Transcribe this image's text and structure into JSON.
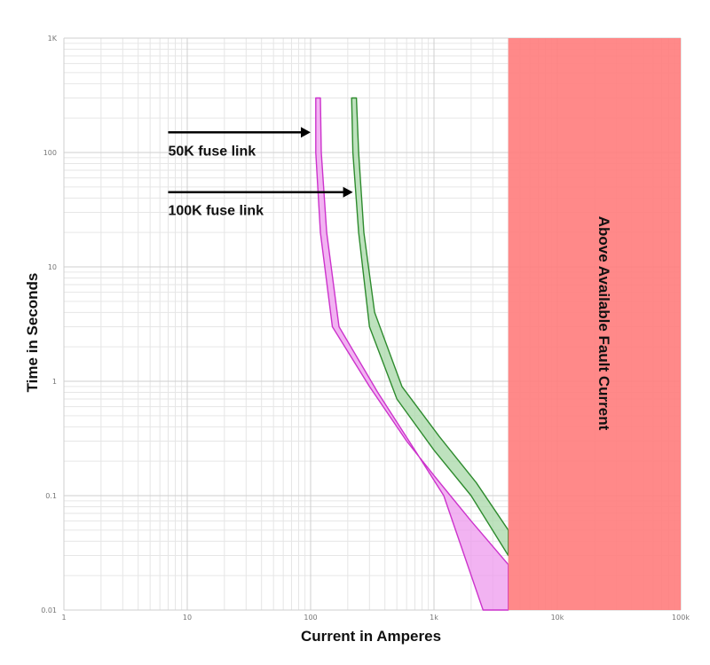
{
  "chart_data": {
    "type": "area",
    "title": "",
    "xlabel": "Current in Amperes",
    "ylabel": "Time in Seconds",
    "x_scale": "log",
    "y_scale": "log",
    "xlim": [
      1,
      100000
    ],
    "ylim": [
      0.01,
      1000
    ],
    "x_ticks": [
      {
        "value": 1,
        "label": "1"
      },
      {
        "value": 10,
        "label": "10"
      },
      {
        "value": 100,
        "label": "100"
      },
      {
        "value": 1000,
        "label": "1k"
      },
      {
        "value": 10000,
        "label": "10k"
      },
      {
        "value": 100000,
        "label": "100k"
      }
    ],
    "y_ticks": [
      {
        "value": 0.01,
        "label": "0.01"
      },
      {
        "value": 0.1,
        "label": "0.1"
      },
      {
        "value": 1,
        "label": "1"
      },
      {
        "value": 10,
        "label": "10"
      },
      {
        "value": 100,
        "label": "100"
      },
      {
        "value": 1000,
        "label": "1K"
      }
    ],
    "grid": true,
    "series": [
      {
        "key": "50k",
        "color": "#cc33cc",
        "fill": "#ee99ee",
        "minimum_melt": [
          [
            110,
            300
          ],
          [
            110,
            100
          ],
          [
            120,
            20
          ],
          [
            150,
            3
          ],
          [
            300,
            0.9
          ],
          [
            600,
            0.3
          ],
          [
            1000,
            0.15
          ],
          [
            2000,
            0.06
          ],
          [
            4000,
            0.025
          ]
        ],
        "total_clear": [
          [
            120,
            300
          ],
          [
            122,
            100
          ],
          [
            135,
            20
          ],
          [
            170,
            3
          ],
          [
            350,
            0.8
          ],
          [
            700,
            0.25
          ],
          [
            1200,
            0.1
          ],
          [
            2500,
            0.01
          ],
          [
            4000,
            0.01
          ]
        ]
      },
      {
        "key": "100k",
        "color": "#2e8b2e",
        "fill": "#a8d8a8",
        "minimum_melt": [
          [
            215,
            300
          ],
          [
            220,
            100
          ],
          [
            245,
            20
          ],
          [
            300,
            3
          ],
          [
            500,
            0.7
          ],
          [
            1000,
            0.25
          ],
          [
            2000,
            0.1
          ],
          [
            4000,
            0.03
          ]
        ],
        "total_clear": [
          [
            235,
            300
          ],
          [
            245,
            100
          ],
          [
            270,
            20
          ],
          [
            330,
            4
          ],
          [
            550,
            0.9
          ],
          [
            1100,
            0.33
          ],
          [
            2200,
            0.13
          ],
          [
            4000,
            0.05
          ]
        ]
      }
    ],
    "annotations": [
      {
        "key": "50k",
        "text": "50K fuse link",
        "arrow_from": [
          7,
          150
        ],
        "arrow_to": [
          100,
          150
        ]
      },
      {
        "key": "100k",
        "text": "100K fuse link",
        "arrow_from": [
          7,
          45
        ],
        "arrow_to": [
          220,
          45
        ]
      }
    ],
    "regions": [
      {
        "x_from": 4000,
        "x_to": 100000,
        "color": "#ff7f7f",
        "label": "Above Available Fault Current"
      }
    ]
  }
}
